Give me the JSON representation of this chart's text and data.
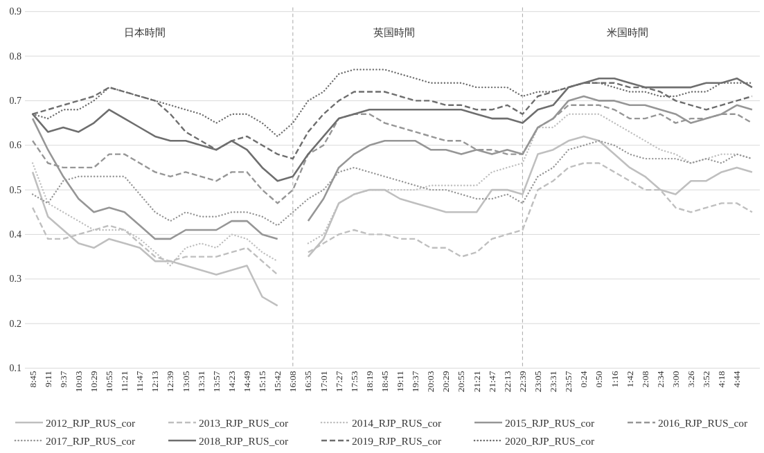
{
  "chart_data": {
    "type": "line",
    "categories": [
      "8:45",
      "9:11",
      "9:37",
      "10:03",
      "10:29",
      "10:55",
      "11:21",
      "11:47",
      "12:13",
      "12:39",
      "13:05",
      "13:31",
      "13:57",
      "14:23",
      "14:49",
      "15:15",
      "15:42",
      "16:08",
      "16:35",
      "17:01",
      "17:27",
      "17:53",
      "18:19",
      "18:45",
      "19:11",
      "19:37",
      "20:03",
      "20:29",
      "20:55",
      "21:21",
      "21:47",
      "22:13",
      "22:39",
      "23:05",
      "23:31",
      "23:57",
      "0:24",
      "0:50",
      "1:16",
      "1:42",
      "2:08",
      "2:34",
      "3:00",
      "3:26",
      "3:52",
      "4:18",
      "4:44",
      null
    ],
    "series": [
      {
        "name": "2012_RJP_RUS_cor",
        "color": "#bfbfbf",
        "line_style": "solid",
        "values": [
          0.54,
          0.44,
          0.41,
          0.38,
          0.37,
          0.39,
          0.38,
          0.37,
          0.34,
          0.34,
          0.33,
          0.32,
          0.31,
          0.32,
          0.33,
          0.26,
          0.24,
          null,
          0.35,
          0.39,
          0.47,
          0.49,
          0.5,
          0.5,
          0.48,
          0.47,
          0.46,
          0.45,
          0.45,
          0.45,
          0.5,
          0.5,
          0.49,
          0.58,
          0.59,
          0.61,
          0.62,
          0.61,
          0.58,
          0.55,
          0.53,
          0.5,
          0.49,
          0.52,
          0.52,
          0.54,
          0.55,
          0.54
        ]
      },
      {
        "name": "2013_RJP_RUS_cor",
        "color": "#bfbfbf",
        "line_style": "dashed",
        "values": [
          0.46,
          0.39,
          0.39,
          0.4,
          0.41,
          0.42,
          0.41,
          0.38,
          0.35,
          0.34,
          0.35,
          0.35,
          0.35,
          0.36,
          0.37,
          0.34,
          0.31,
          null,
          0.36,
          0.38,
          0.4,
          0.41,
          0.4,
          0.4,
          0.39,
          0.39,
          0.37,
          0.37,
          0.35,
          0.36,
          0.39,
          0.4,
          0.41,
          0.5,
          0.52,
          0.55,
          0.56,
          0.56,
          0.54,
          0.52,
          0.5,
          0.5,
          0.46,
          0.45,
          0.46,
          0.47,
          0.47,
          0.45
        ]
      },
      {
        "name": "2014_RJP_RUS_cor",
        "color": "#bfbfbf",
        "line_style": "dotted",
        "values": [
          0.56,
          0.47,
          0.45,
          0.43,
          0.41,
          0.41,
          0.41,
          0.39,
          0.36,
          0.33,
          0.37,
          0.38,
          0.37,
          0.4,
          0.39,
          0.36,
          0.34,
          null,
          0.38,
          0.4,
          0.47,
          0.49,
          0.5,
          0.5,
          0.5,
          0.5,
          0.51,
          0.51,
          0.51,
          0.51,
          0.54,
          0.55,
          0.56,
          0.64,
          0.64,
          0.67,
          0.67,
          0.67,
          0.65,
          0.63,
          0.61,
          0.59,
          0.58,
          0.56,
          0.57,
          0.58,
          0.58,
          0.57
        ]
      },
      {
        "name": "2015_RJP_RUS_cor",
        "color": "#969696",
        "line_style": "solid",
        "values": [
          0.66,
          0.59,
          0.53,
          0.48,
          0.45,
          0.46,
          0.45,
          0.42,
          0.39,
          0.39,
          0.41,
          0.41,
          0.41,
          0.43,
          0.43,
          0.4,
          0.39,
          null,
          0.43,
          0.48,
          0.55,
          0.58,
          0.6,
          0.61,
          0.61,
          0.61,
          0.59,
          0.59,
          0.58,
          0.59,
          0.58,
          0.59,
          0.58,
          0.64,
          0.66,
          0.7,
          0.71,
          0.7,
          0.7,
          0.69,
          0.69,
          0.68,
          0.67,
          0.65,
          0.66,
          0.67,
          0.69,
          0.68
        ]
      },
      {
        "name": "2016_RJP_RUS_cor",
        "color": "#969696",
        "line_style": "dashed",
        "values": [
          0.61,
          0.56,
          0.55,
          0.55,
          0.55,
          0.58,
          0.58,
          0.56,
          0.54,
          0.53,
          0.54,
          0.53,
          0.52,
          0.54,
          0.54,
          0.5,
          0.47,
          0.5,
          0.58,
          0.6,
          0.66,
          0.67,
          0.67,
          0.65,
          0.64,
          0.63,
          0.62,
          0.61,
          0.61,
          0.59,
          0.59,
          0.58,
          0.58,
          0.64,
          0.66,
          0.69,
          0.69,
          0.69,
          0.68,
          0.66,
          0.66,
          0.67,
          0.65,
          0.66,
          0.66,
          0.67,
          0.67,
          0.65
        ]
      },
      {
        "name": "2017_RJP_RUS_cor",
        "color": "#969696",
        "line_style": "dotted",
        "values": [
          0.49,
          0.47,
          0.52,
          0.53,
          0.53,
          0.53,
          0.53,
          0.49,
          0.45,
          0.43,
          0.45,
          0.44,
          0.44,
          0.45,
          0.45,
          0.44,
          0.42,
          0.45,
          0.48,
          0.5,
          0.54,
          0.55,
          0.54,
          0.53,
          0.52,
          0.51,
          0.5,
          0.5,
          0.49,
          0.48,
          0.48,
          0.49,
          0.47,
          0.53,
          0.55,
          0.59,
          0.6,
          0.61,
          0.6,
          0.58,
          0.57,
          0.57,
          0.57,
          0.56,
          0.57,
          0.56,
          0.58,
          0.57
        ]
      },
      {
        "name": "2018_RJP_RUS_cor",
        "color": "#6e6e6e",
        "line_style": "solid",
        "values": [
          0.67,
          0.63,
          0.64,
          0.63,
          0.65,
          0.68,
          0.66,
          0.64,
          0.62,
          0.61,
          0.61,
          0.6,
          0.59,
          0.61,
          0.59,
          0.55,
          0.52,
          0.53,
          0.58,
          0.62,
          0.66,
          0.67,
          0.68,
          0.68,
          0.68,
          0.68,
          0.68,
          0.68,
          0.68,
          0.67,
          0.66,
          0.66,
          0.65,
          0.68,
          0.69,
          0.73,
          0.74,
          0.75,
          0.75,
          0.74,
          0.73,
          0.73,
          0.73,
          0.73,
          0.74,
          0.74,
          0.75,
          0.73
        ]
      },
      {
        "name": "2019_RJP_RUS_cor",
        "color": "#6e6e6e",
        "line_style": "dashed",
        "values": [
          0.67,
          0.68,
          0.69,
          0.7,
          0.71,
          0.73,
          0.72,
          0.71,
          0.7,
          0.67,
          0.63,
          0.61,
          0.59,
          0.61,
          0.62,
          0.6,
          0.58,
          0.57,
          0.63,
          0.67,
          0.7,
          0.72,
          0.72,
          0.72,
          0.71,
          0.7,
          0.7,
          0.69,
          0.69,
          0.68,
          0.68,
          0.69,
          0.67,
          0.71,
          0.72,
          0.73,
          0.74,
          0.74,
          0.74,
          0.73,
          0.73,
          0.72,
          0.7,
          0.69,
          0.68,
          0.69,
          0.7,
          0.71
        ]
      },
      {
        "name": "2020_RJP_RUS_cor",
        "color": "#6e6e6e",
        "line_style": "dotted",
        "values": [
          0.67,
          0.66,
          0.68,
          0.68,
          0.7,
          0.73,
          0.72,
          0.71,
          0.7,
          0.69,
          0.68,
          0.67,
          0.65,
          0.67,
          0.67,
          0.65,
          0.62,
          0.65,
          0.7,
          0.72,
          0.76,
          0.77,
          0.77,
          0.77,
          0.76,
          0.75,
          0.74,
          0.74,
          0.74,
          0.73,
          0.73,
          0.73,
          0.71,
          0.72,
          0.72,
          0.73,
          0.74,
          0.74,
          0.73,
          0.72,
          0.72,
          0.71,
          0.71,
          0.72,
          0.72,
          0.74,
          0.74,
          0.74
        ]
      }
    ],
    "ylim": [
      0.1,
      0.9
    ],
    "yticks": [
      0.1,
      0.2,
      0.3,
      0.4,
      0.5,
      0.6,
      0.7,
      0.8,
      0.9
    ],
    "grid": "y",
    "legend": "bottom",
    "ref_lines": [
      {
        "axis": "x",
        "value": "16:08",
        "label": null,
        "color": "#a6a6a6",
        "line_style": "dashed"
      },
      {
        "axis": "x",
        "value": "22:39",
        "label": null,
        "color": "#a6a6a6",
        "line_style": "dashed"
      }
    ],
    "annotations": [
      "日本時間",
      "英国時間",
      "米国時間"
    ]
  }
}
